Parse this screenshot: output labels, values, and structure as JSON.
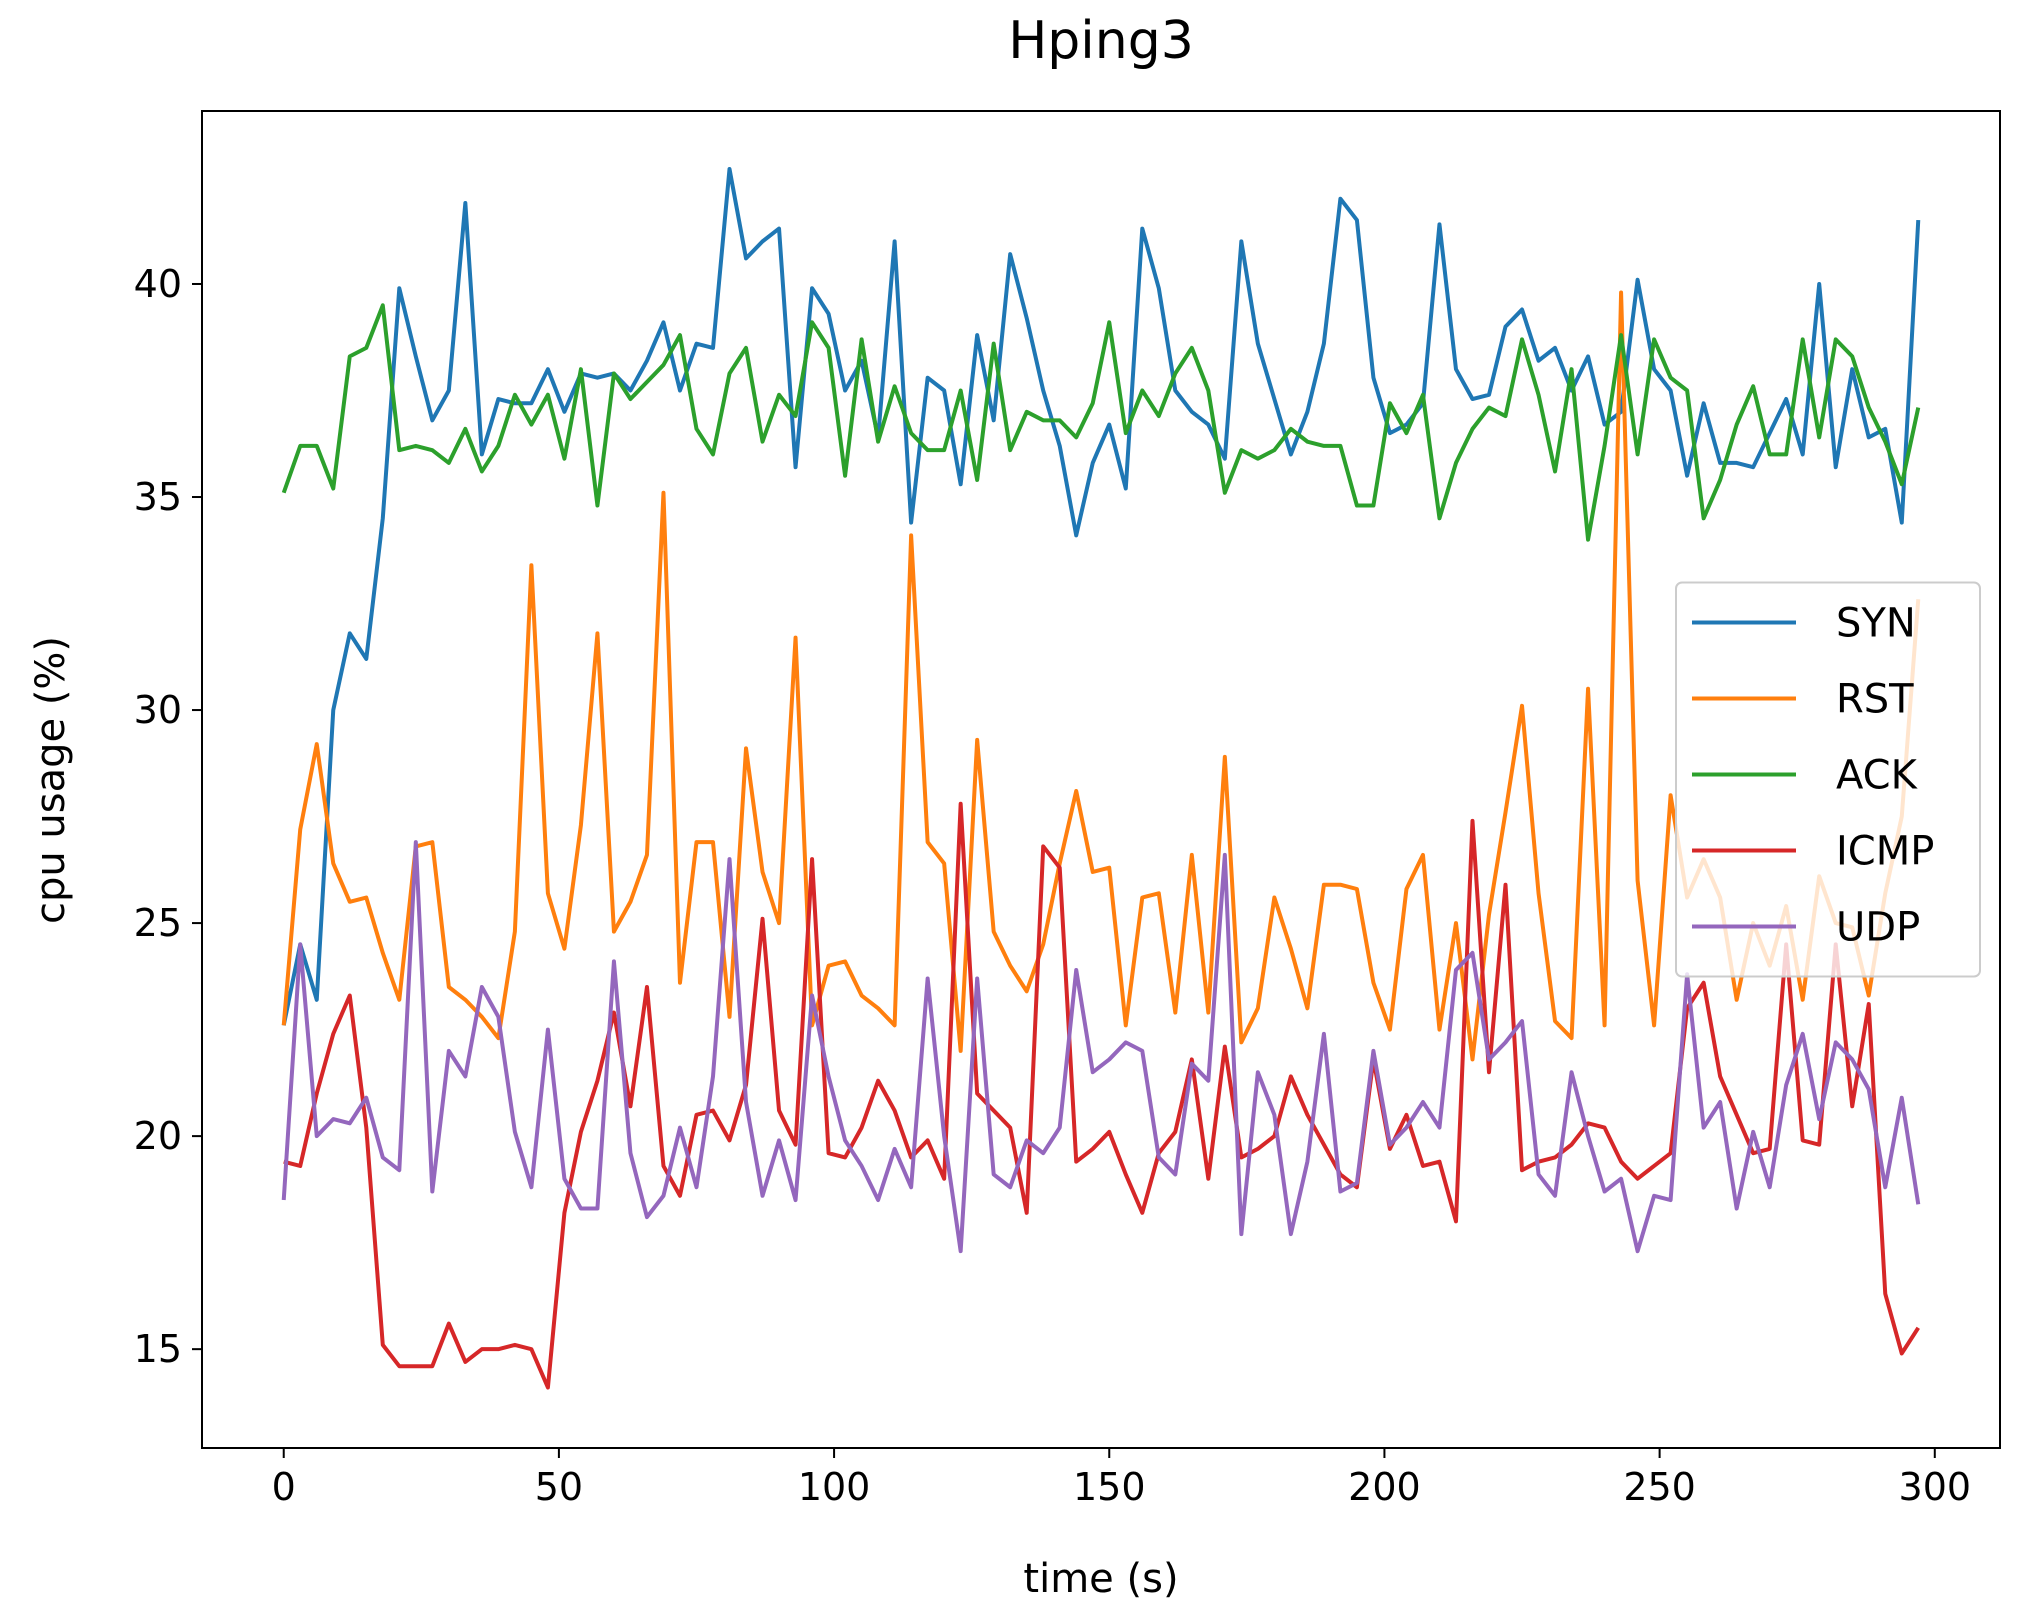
{
  "chart_data": {
    "type": "line",
    "title": "Hping3",
    "xlabel": "time (s)",
    "ylabel": "cpu usage (%)",
    "x": [
      0,
      3,
      6,
      9,
      12,
      15,
      18,
      21,
      24,
      27,
      30,
      33,
      36,
      39,
      42,
      45,
      48,
      51,
      54,
      57,
      60,
      63,
      66,
      69,
      72,
      75,
      78,
      81,
      84,
      87,
      90,
      93,
      96,
      99,
      102,
      105,
      108,
      111,
      114,
      117,
      120,
      123,
      126,
      129,
      132,
      135,
      138,
      141,
      144,
      147,
      150,
      153,
      156,
      159,
      162,
      165,
      168,
      171,
      174,
      177,
      180,
      183,
      186,
      189,
      192,
      195,
      198,
      201,
      204,
      207,
      210,
      213,
      216,
      219,
      222,
      225,
      228,
      231,
      234,
      237,
      240,
      243,
      246,
      249,
      252,
      255,
      258,
      261,
      264,
      267,
      270,
      273,
      276,
      279,
      282,
      285,
      288,
      291,
      294,
      297
    ],
    "series": [
      {
        "name": "SYN",
        "color": "#1f77b4",
        "values": [
          22.6,
          24.5,
          23.2,
          30.0,
          31.8,
          31.2,
          34.5,
          39.9,
          38.3,
          36.8,
          37.5,
          41.9,
          36.0,
          37.3,
          37.2,
          37.2,
          38.0,
          37.0,
          37.9,
          37.8,
          37.9,
          37.5,
          38.2,
          39.1,
          37.5,
          38.6,
          38.5,
          42.7,
          40.6,
          41.0,
          41.3,
          35.7,
          39.9,
          39.3,
          37.5,
          38.2,
          36.4,
          41.0,
          34.4,
          37.8,
          37.5,
          35.3,
          38.8,
          36.8,
          40.7,
          39.2,
          37.5,
          36.2,
          34.1,
          35.8,
          36.7,
          35.2,
          41.3,
          39.9,
          37.5,
          37.0,
          36.7,
          35.9,
          41.0,
          38.6,
          37.3,
          36.0,
          37.0,
          38.6,
          42.0,
          41.5,
          37.8,
          36.5,
          36.7,
          37.2,
          41.4,
          38.0,
          37.3,
          37.4,
          39.0,
          39.4,
          38.2,
          38.5,
          37.5,
          38.3,
          36.7,
          37.0,
          40.1,
          38.0,
          37.5,
          35.5,
          37.2,
          35.8,
          35.8,
          35.7,
          36.5,
          37.3,
          36.0,
          40.0,
          35.7,
          38.0,
          36.4,
          36.6,
          34.4,
          41.5
        ]
      },
      {
        "name": "RST",
        "color": "#ff7f0e",
        "values": [
          22.6,
          27.2,
          29.2,
          26.4,
          25.5,
          25.6,
          24.3,
          23.2,
          26.8,
          26.9,
          23.5,
          23.2,
          22.8,
          22.3,
          24.8,
          33.4,
          25.7,
          24.4,
          27.3,
          31.8,
          24.8,
          25.5,
          26.6,
          35.1,
          23.6,
          26.9,
          26.9,
          22.8,
          29.1,
          26.2,
          25.0,
          31.7,
          22.6,
          24.0,
          24.1,
          23.3,
          23.0,
          22.6,
          34.1,
          26.9,
          26.4,
          22.0,
          29.3,
          24.8,
          24.0,
          23.4,
          24.5,
          26.4,
          28.1,
          26.2,
          26.3,
          22.6,
          25.6,
          25.7,
          22.9,
          26.6,
          22.9,
          28.9,
          22.2,
          23.0,
          25.6,
          24.4,
          23.0,
          25.9,
          25.9,
          25.8,
          23.6,
          22.5,
          25.8,
          26.6,
          22.5,
          25.0,
          21.8,
          25.2,
          27.6,
          30.1,
          25.7,
          22.7,
          22.3,
          30.5,
          22.6,
          39.8,
          26.0,
          22.6,
          28.0,
          25.6,
          26.5,
          25.6,
          23.2,
          25.0,
          24.0,
          25.4,
          23.2,
          26.1,
          25.0,
          24.9,
          23.3,
          25.7,
          27.5,
          32.6
        ]
      },
      {
        "name": "ACK",
        "color": "#2ca02c",
        "values": [
          35.1,
          36.2,
          36.2,
          35.2,
          38.3,
          38.5,
          39.5,
          36.1,
          36.2,
          36.1,
          35.8,
          36.6,
          35.6,
          36.2,
          37.4,
          36.7,
          37.4,
          35.9,
          38.0,
          34.8,
          37.9,
          37.3,
          37.7,
          38.1,
          38.8,
          36.6,
          36.0,
          37.9,
          38.5,
          36.3,
          37.4,
          36.9,
          39.1,
          38.5,
          35.5,
          38.7,
          36.3,
          37.6,
          36.5,
          36.1,
          36.1,
          37.5,
          35.4,
          38.6,
          36.1,
          37.0,
          36.8,
          36.8,
          36.4,
          37.2,
          39.1,
          36.5,
          37.5,
          36.9,
          37.9,
          38.5,
          37.5,
          35.1,
          36.1,
          35.9,
          36.1,
          36.6,
          36.3,
          36.2,
          36.2,
          34.8,
          34.8,
          37.2,
          36.5,
          37.4,
          34.5,
          35.8,
          36.6,
          37.1,
          36.9,
          38.7,
          37.4,
          35.6,
          38.0,
          34.0,
          36.2,
          38.8,
          36.0,
          38.7,
          37.8,
          37.5,
          34.5,
          35.4,
          36.7,
          37.6,
          36.0,
          36.0,
          38.7,
          36.4,
          38.7,
          38.3,
          37.1,
          36.3,
          35.3,
          37.1
        ]
      },
      {
        "name": "ICMP",
        "color": "#d62728",
        "values": [
          19.4,
          19.3,
          21.0,
          22.4,
          23.3,
          20.2,
          15.1,
          14.6,
          14.6,
          14.6,
          15.6,
          14.7,
          15.0,
          15.0,
          15.1,
          15.0,
          14.1,
          18.2,
          20.1,
          21.3,
          22.9,
          20.7,
          23.5,
          19.3,
          18.6,
          20.5,
          20.6,
          19.9,
          21.2,
          25.1,
          20.6,
          19.8,
          26.5,
          19.6,
          19.5,
          20.2,
          21.3,
          20.6,
          19.5,
          19.9,
          19.0,
          27.8,
          21.0,
          20.6,
          20.2,
          18.2,
          26.8,
          26.3,
          19.4,
          19.7,
          20.1,
          19.1,
          18.2,
          19.6,
          20.1,
          21.8,
          19.0,
          22.1,
          19.5,
          19.7,
          20.0,
          21.4,
          20.5,
          19.8,
          19.1,
          18.8,
          21.8,
          19.7,
          20.5,
          19.3,
          19.4,
          18.0,
          27.4,
          21.5,
          25.9,
          19.2,
          19.4,
          19.5,
          19.8,
          20.3,
          20.2,
          19.4,
          19.0,
          19.3,
          19.6,
          23.0,
          23.6,
          21.4,
          20.5,
          19.6,
          19.7,
          24.5,
          19.9,
          19.8,
          24.5,
          20.7,
          23.1,
          16.3,
          14.9,
          15.5
        ]
      },
      {
        "name": "UDP",
        "color": "#9467bd",
        "values": [
          18.5,
          24.5,
          20.0,
          20.4,
          20.3,
          20.9,
          19.5,
          19.2,
          26.9,
          18.7,
          22.0,
          21.4,
          23.5,
          22.8,
          20.1,
          18.8,
          22.5,
          19.0,
          18.3,
          18.3,
          24.1,
          19.6,
          18.1,
          18.6,
          20.2,
          18.8,
          21.4,
          26.5,
          20.8,
          18.6,
          19.9,
          18.5,
          23.3,
          21.4,
          19.9,
          19.3,
          18.5,
          19.7,
          18.8,
          23.7,
          20.0,
          17.3,
          23.7,
          19.1,
          18.8,
          19.9,
          19.6,
          20.2,
          23.9,
          21.5,
          21.8,
          22.2,
          22.0,
          19.5,
          19.1,
          21.7,
          21.3,
          26.6,
          17.7,
          21.5,
          20.5,
          17.7,
          19.4,
          22.4,
          18.7,
          18.9,
          22.0,
          19.8,
          20.2,
          20.8,
          20.2,
          23.9,
          24.3,
          21.8,
          22.2,
          22.7,
          19.1,
          18.6,
          21.5,
          20.0,
          18.7,
          19.0,
          17.3,
          18.6,
          18.5,
          23.8,
          20.2,
          20.8,
          18.3,
          20.1,
          18.8,
          21.2,
          22.4,
          20.4,
          22.2,
          21.8,
          21.1,
          18.8,
          20.9,
          18.4
        ]
      }
    ],
    "xlim": [
      -14.85,
      311.85
    ],
    "xticks": [
      0,
      50,
      100,
      150,
      200,
      250,
      300
    ],
    "ylim": [
      12.68,
      44.06
    ],
    "yticks": [
      15,
      20,
      25,
      30,
      35,
      40
    ],
    "grid": false,
    "legend": "center right"
  }
}
